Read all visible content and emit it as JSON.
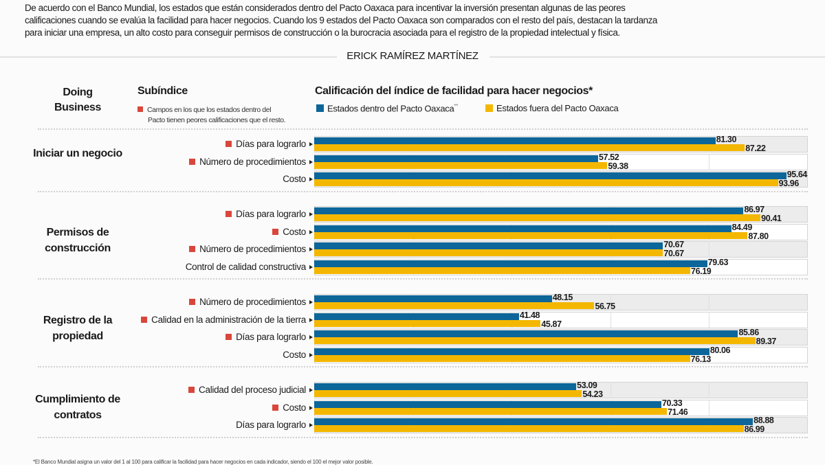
{
  "intro_lines": [
    "De acuerdo con el Banco Mundial, los estados que están considerados dentro del Pacto Oaxaca para incentivar la inversión presentan algunas de las peores",
    "calificaciones cuando se evalúa la facilidad para hacer negocios. Cuando los 9 estados del Pacto Oaxaca son comparados con el resto del país, destacan la tardanza",
    "para iniciar una empresa, un alto costo para conseguir permisos de construcción o la burocracia asociada para el registro de la propiedad intelectual y física."
  ],
  "byline": "ERICK RAMÍREZ MARTÍNEZ",
  "headers": {
    "doing_business": "Doing Business",
    "subindice": "Subíndice",
    "note_line1": "Campos en los que los estados dentro del",
    "note_line2": "Pacto tienen peores calificaciones que el resto.",
    "calificacion": "Calificación del índice de facilidad para hacer negocios*"
  },
  "footnote": "*El Banco Mundial asigna un valor del 1 al 100 para calificar la facilidad para hacer negocios en cada indicador, siendo el 100 el mejor valor posible.",
  "colors": {
    "inside": "#0c6699",
    "outside": "#f4b700",
    "marker": "#d9473c"
  },
  "chart_data": {
    "type": "bar",
    "orientation": "horizontal",
    "title": "Calificación del índice de facilidad para hacer negocios*",
    "xlim": [
      0,
      100
    ],
    "grid": true,
    "legend": "top",
    "series": [
      {
        "name": "Estados dentro del Pacto Oaxaca",
        "name_mark": "**",
        "color": "#0c6699"
      },
      {
        "name": "Estados fuera del Pacto Oaxaca",
        "color": "#f4b700"
      }
    ],
    "sections": [
      {
        "label": "Iniciar un negocio",
        "rows": [
          {
            "label": "Días para lograrlo",
            "marked": true,
            "inside": 81.3,
            "outside": 87.22
          },
          {
            "label": "Número de procedimientos",
            "marked": true,
            "inside": 57.52,
            "outside": 59.38
          },
          {
            "label": "Costo",
            "marked": false,
            "inside": 95.64,
            "outside": 93.96
          }
        ]
      },
      {
        "label": "Permisos de construcción",
        "rows": [
          {
            "label": "Días para lograrlo",
            "marked": true,
            "inside": 86.97,
            "outside": 90.41
          },
          {
            "label": "Costo",
            "marked": true,
            "inside": 84.49,
            "outside": 87.8
          },
          {
            "label": "Número de procedimientos",
            "marked": true,
            "inside": 70.67,
            "outside": 70.67
          },
          {
            "label": "Control de calidad constructiva",
            "marked": false,
            "inside": 79.63,
            "outside": 76.19
          }
        ]
      },
      {
        "label": "Registro de la propiedad",
        "rows": [
          {
            "label": "Número de procedimientos",
            "marked": true,
            "inside": 48.15,
            "outside": 56.75
          },
          {
            "label": "Calidad en la administración de la tierra",
            "marked": true,
            "inside": 41.48,
            "outside": 45.87
          },
          {
            "label": "Días para lograrlo",
            "marked": true,
            "inside": 85.86,
            "outside": 89.37
          },
          {
            "label": "Costo",
            "marked": false,
            "inside": 80.06,
            "outside": 76.13
          }
        ]
      },
      {
        "label": "Cumplimiento de contratos",
        "rows": [
          {
            "label": "Calidad del proceso judicial",
            "marked": true,
            "inside": 53.09,
            "outside": 54.23
          },
          {
            "label": "Costo",
            "marked": true,
            "inside": 70.33,
            "outside": 71.46
          },
          {
            "label": "Días para lograrlo",
            "marked": false,
            "inside": 88.88,
            "outside": 86.99
          }
        ]
      }
    ]
  }
}
